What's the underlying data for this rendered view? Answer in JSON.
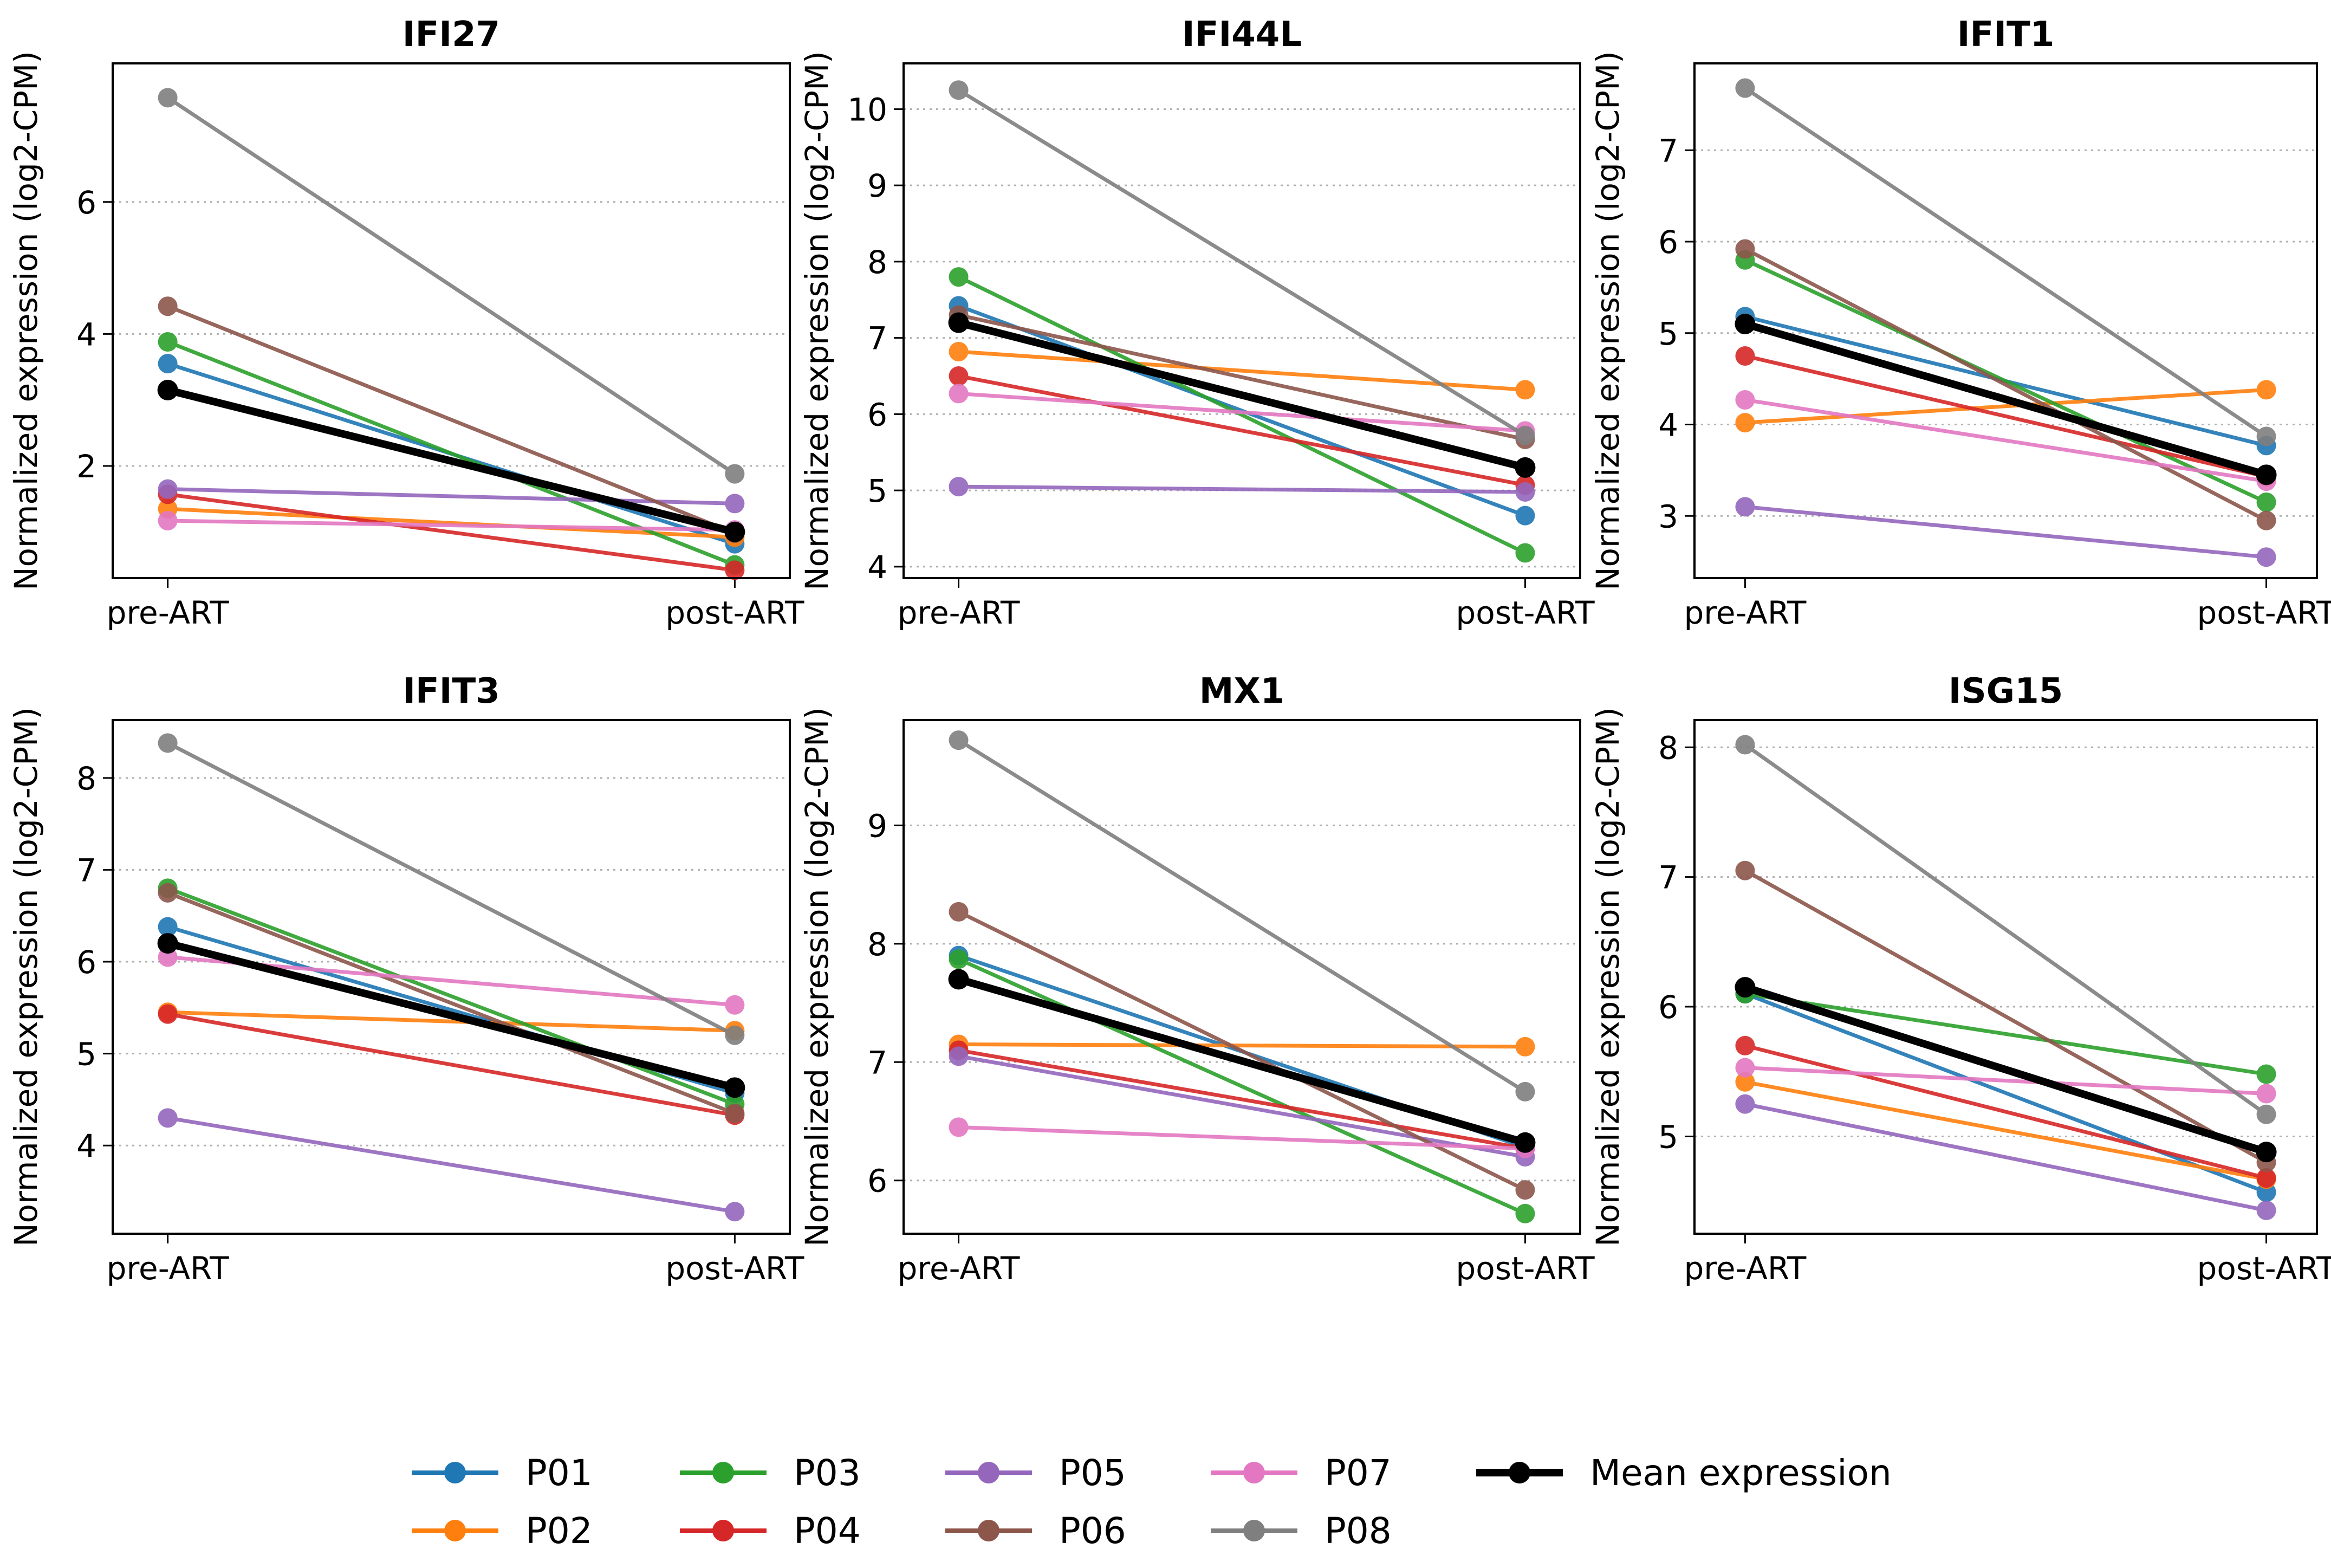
{
  "chart_data": [
    {
      "type": "line",
      "title": "IFI27",
      "categories": [
        "pre-ART",
        "post-ART"
      ],
      "ylabel": "Normalized expression (log2-CPM)",
      "ylim": [
        0.3,
        8.1
      ],
      "yticks": [
        2,
        4,
        6
      ],
      "series": [
        {
          "name": "P01",
          "values": [
            3.55,
            0.82
          ]
        },
        {
          "name": "P02",
          "values": [
            1.35,
            0.92
          ]
        },
        {
          "name": "P03",
          "values": [
            3.88,
            0.5
          ]
        },
        {
          "name": "P04",
          "values": [
            1.57,
            0.42
          ]
        },
        {
          "name": "P05",
          "values": [
            1.65,
            1.43
          ]
        },
        {
          "name": "P06",
          "values": [
            4.42,
            0.98
          ]
        },
        {
          "name": "P07",
          "values": [
            1.17,
            1.03
          ]
        },
        {
          "name": "P08",
          "values": [
            7.58,
            1.88
          ]
        },
        {
          "name": "Mean expression",
          "values": [
            3.15,
            1.0
          ]
        }
      ]
    },
    {
      "type": "line",
      "title": "IFI44L",
      "categories": [
        "pre-ART",
        "post-ART"
      ],
      "ylabel": "Normalized expression (log2-CPM)",
      "ylim": [
        3.85,
        10.6
      ],
      "yticks": [
        4,
        5,
        6,
        7,
        8,
        9,
        10
      ],
      "series": [
        {
          "name": "P01",
          "values": [
            7.42,
            4.67
          ]
        },
        {
          "name": "P02",
          "values": [
            6.82,
            6.32
          ]
        },
        {
          "name": "P03",
          "values": [
            7.8,
            4.18
          ]
        },
        {
          "name": "P04",
          "values": [
            6.5,
            5.07
          ]
        },
        {
          "name": "P05",
          "values": [
            5.05,
            4.98
          ]
        },
        {
          "name": "P06",
          "values": [
            7.3,
            5.67
          ]
        },
        {
          "name": "P07",
          "values": [
            6.27,
            5.78
          ]
        },
        {
          "name": "P08",
          "values": [
            10.25,
            5.72
          ]
        },
        {
          "name": "Mean expression",
          "values": [
            7.2,
            5.3
          ]
        }
      ]
    },
    {
      "type": "line",
      "title": "IFIT1",
      "categories": [
        "pre-ART",
        "post-ART"
      ],
      "ylabel": "Normalized expression (log2-CPM)",
      "ylim": [
        2.32,
        7.95
      ],
      "yticks": [
        3,
        4,
        5,
        6,
        7
      ],
      "series": [
        {
          "name": "P01",
          "values": [
            5.18,
            3.77
          ]
        },
        {
          "name": "P02",
          "values": [
            4.02,
            4.38
          ]
        },
        {
          "name": "P03",
          "values": [
            5.8,
            3.15
          ]
        },
        {
          "name": "P04",
          "values": [
            4.75,
            3.43
          ]
        },
        {
          "name": "P05",
          "values": [
            3.1,
            2.55
          ]
        },
        {
          "name": "P06",
          "values": [
            5.92,
            2.95
          ]
        },
        {
          "name": "P07",
          "values": [
            4.27,
            3.38
          ]
        },
        {
          "name": "P08",
          "values": [
            7.68,
            3.87
          ]
        },
        {
          "name": "Mean expression",
          "values": [
            5.1,
            3.45
          ]
        }
      ]
    },
    {
      "type": "line",
      "title": "IFIT3",
      "categories": [
        "pre-ART",
        "post-ART"
      ],
      "ylabel": "Normalized expression (log2-CPM)",
      "ylim": [
        3.04,
        8.63
      ],
      "yticks": [
        4,
        5,
        6,
        7,
        8
      ],
      "series": [
        {
          "name": "P01",
          "values": [
            6.38,
            4.57
          ]
        },
        {
          "name": "P02",
          "values": [
            5.45,
            5.25
          ]
        },
        {
          "name": "P03",
          "values": [
            6.8,
            4.45
          ]
        },
        {
          "name": "P04",
          "values": [
            5.43,
            4.33
          ]
        },
        {
          "name": "P05",
          "values": [
            4.3,
            3.28
          ]
        },
        {
          "name": "P06",
          "values": [
            6.75,
            4.35
          ]
        },
        {
          "name": "P07",
          "values": [
            6.05,
            5.53
          ]
        },
        {
          "name": "P08",
          "values": [
            8.38,
            5.2
          ]
        },
        {
          "name": "Mean expression",
          "values": [
            6.2,
            4.63
          ]
        }
      ]
    },
    {
      "type": "line",
      "title": "MX1",
      "categories": [
        "pre-ART",
        "post-ART"
      ],
      "ylabel": "Normalized expression (log2-CPM)",
      "ylim": [
        5.55,
        9.89
      ],
      "yticks": [
        6,
        7,
        8,
        9
      ],
      "series": [
        {
          "name": "P01",
          "values": [
            7.9,
            6.28
          ]
        },
        {
          "name": "P02",
          "values": [
            7.15,
            7.13
          ]
        },
        {
          "name": "P03",
          "values": [
            7.87,
            5.72
          ]
        },
        {
          "name": "P04",
          "values": [
            7.1,
            6.27
          ]
        },
        {
          "name": "P05",
          "values": [
            7.05,
            6.2
          ]
        },
        {
          "name": "P06",
          "values": [
            8.27,
            5.92
          ]
        },
        {
          "name": "P07",
          "values": [
            6.45,
            6.27
          ]
        },
        {
          "name": "P08",
          "values": [
            9.72,
            6.75
          ]
        },
        {
          "name": "Mean expression",
          "values": [
            7.7,
            6.32
          ]
        }
      ]
    },
    {
      "type": "line",
      "title": "ISG15",
      "categories": [
        "pre-ART",
        "post-ART"
      ],
      "ylabel": "Normalized expression (log2-CPM)",
      "ylim": [
        4.25,
        8.21
      ],
      "yticks": [
        5,
        6,
        7,
        8
      ],
      "series": [
        {
          "name": "P01",
          "values": [
            6.1,
            4.57
          ]
        },
        {
          "name": "P02",
          "values": [
            5.42,
            4.67
          ]
        },
        {
          "name": "P03",
          "values": [
            6.1,
            5.48
          ]
        },
        {
          "name": "P04",
          "values": [
            5.7,
            4.68
          ]
        },
        {
          "name": "P05",
          "values": [
            5.25,
            4.43
          ]
        },
        {
          "name": "P06",
          "values": [
            7.05,
            4.8
          ]
        },
        {
          "name": "P07",
          "values": [
            5.53,
            5.33
          ]
        },
        {
          "name": "P08",
          "values": [
            8.02,
            5.17
          ]
        },
        {
          "name": "Mean expression",
          "values": [
            6.15,
            4.88
          ]
        }
      ]
    }
  ],
  "legend": {
    "entries": [
      "P01",
      "P02",
      "P03",
      "P04",
      "P05",
      "P06",
      "P07",
      "P08",
      "Mean expression"
    ]
  },
  "colors": {
    "P01": "#1f77b4",
    "P02": "#ff7f0e",
    "P03": "#2ca02c",
    "P04": "#d62728",
    "P05": "#9467bd",
    "P06": "#8c564b",
    "P07": "#e377c2",
    "P08": "#7f7f7f",
    "Mean expression": "#000000"
  }
}
